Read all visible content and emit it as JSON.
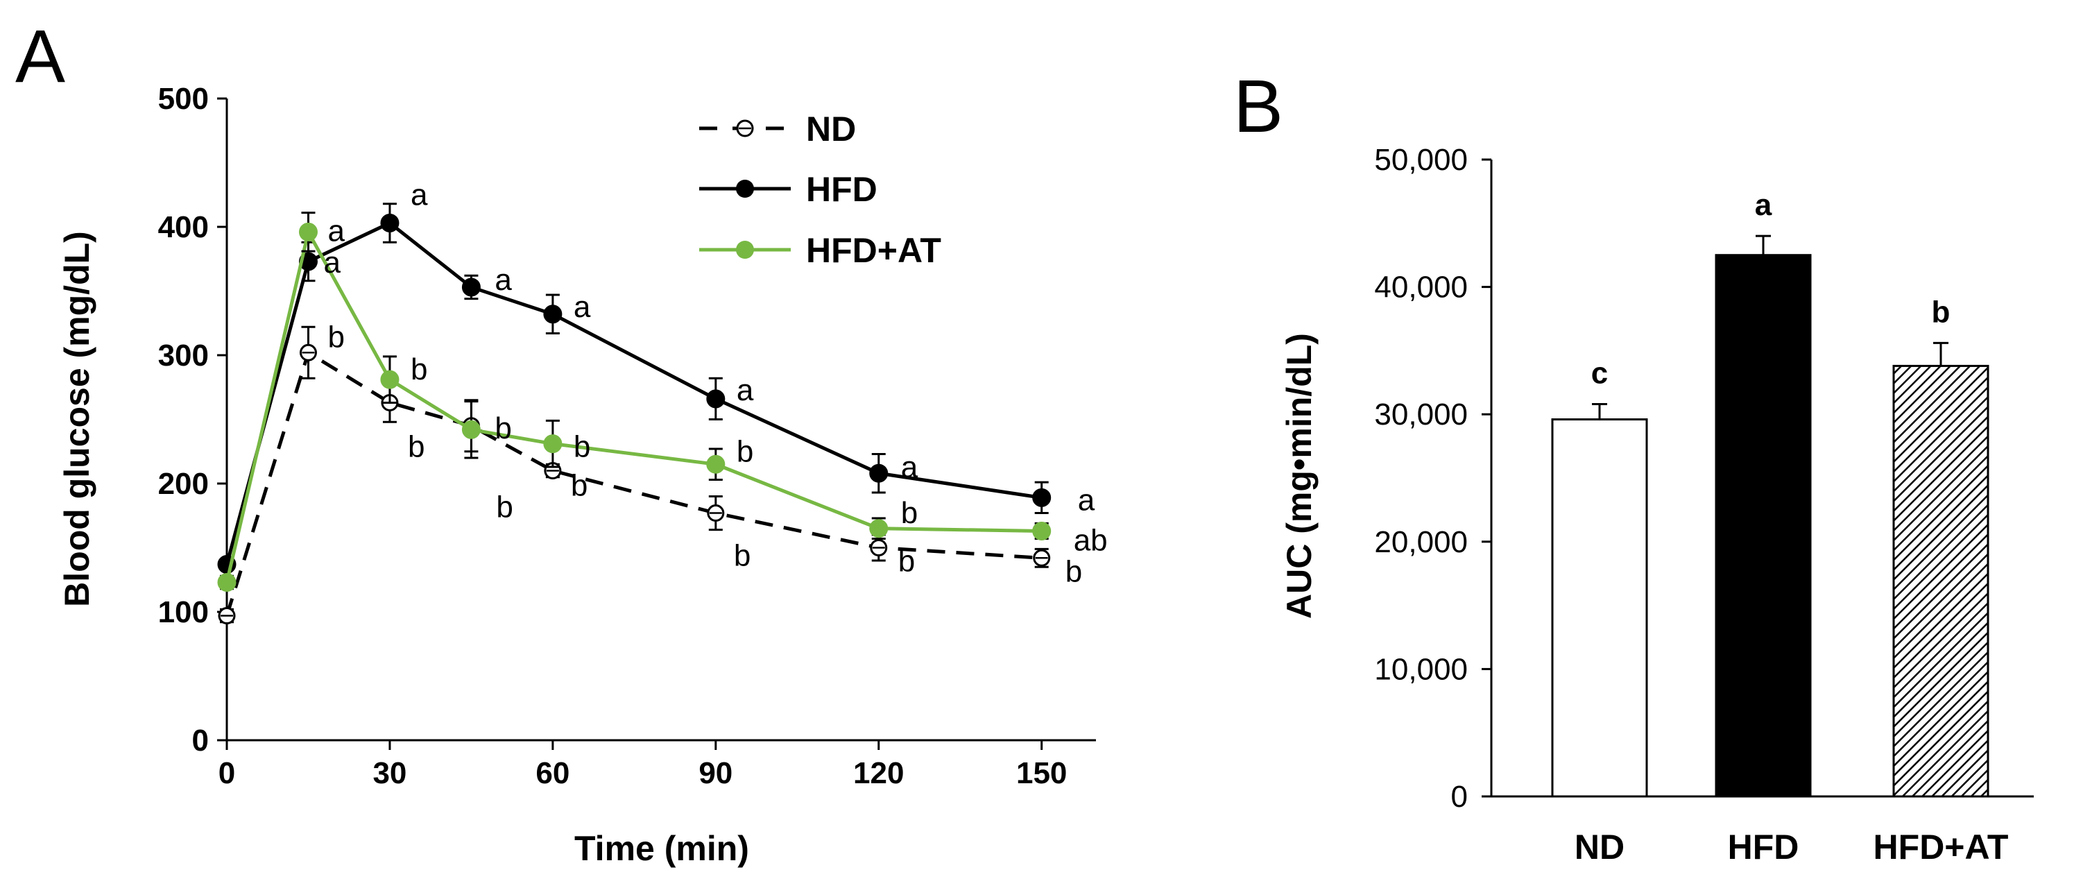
{
  "panels": {
    "a_label": "A",
    "b_label": "B"
  },
  "chart_data": [
    {
      "type": "line",
      "panel": "A",
      "xlabel": "Time (min)",
      "ylabel": "Blood glucose (mg/dL)",
      "xlim": [
        0,
        160
      ],
      "ylim": [
        0,
        500
      ],
      "xticks": [
        0,
        30,
        60,
        90,
        120,
        150
      ],
      "yticks": [
        0,
        100,
        200,
        300,
        400,
        500
      ],
      "x": [
        0,
        15,
        30,
        45,
        60,
        90,
        120,
        150
      ],
      "legend_position": "top-center",
      "series": [
        {
          "name": "ND",
          "color": "#000000",
          "style": "dashed",
          "marker": "open-circle",
          "values": [
            97,
            302,
            263,
            245,
            210,
            177,
            150,
            142
          ],
          "errors": [
            5,
            20,
            15,
            20,
            5,
            13,
            10,
            7
          ],
          "labels": [
            "",
            "b",
            "b",
            "b",
            "b",
            "b",
            "b",
            "b"
          ]
        },
        {
          "name": "HFD",
          "color": "#000000",
          "style": "solid",
          "marker": "filled-circle",
          "values": [
            137,
            373,
            403,
            353,
            332,
            266,
            208,
            189
          ],
          "errors": [
            3,
            15,
            15,
            9,
            15,
            16,
            15,
            12
          ],
          "labels": [
            "",
            "a",
            "a",
            "a",
            "a",
            "a",
            "a",
            "a"
          ]
        },
        {
          "name": "HFD+AT",
          "color": "#77b843",
          "style": "solid",
          "marker": "filled-circle",
          "values": [
            123,
            396,
            281,
            242,
            231,
            215,
            165,
            163
          ],
          "errors": [
            5,
            15,
            18,
            22,
            18,
            12,
            8,
            6
          ],
          "labels": [
            "",
            "a",
            "b",
            "b",
            "b",
            "b",
            "b",
            "ab"
          ]
        }
      ]
    },
    {
      "type": "bar",
      "panel": "B",
      "ylabel": "AUC (mg•min/dL)",
      "ylim": [
        0,
        50000
      ],
      "yticks": [
        0,
        10000,
        20000,
        30000,
        40000,
        50000
      ],
      "ytick_labels": [
        "0",
        "10,000",
        "20,000",
        "30,000",
        "40,000",
        "50,000"
      ],
      "categories": [
        "ND",
        "HFD",
        "HFD+AT"
      ],
      "values": [
        29600,
        42500,
        33800
      ],
      "errors": [
        1200,
        1500,
        1800
      ],
      "fills": [
        "white",
        "black",
        "hatched"
      ],
      "labels": [
        "c",
        "a",
        "b"
      ]
    }
  ]
}
